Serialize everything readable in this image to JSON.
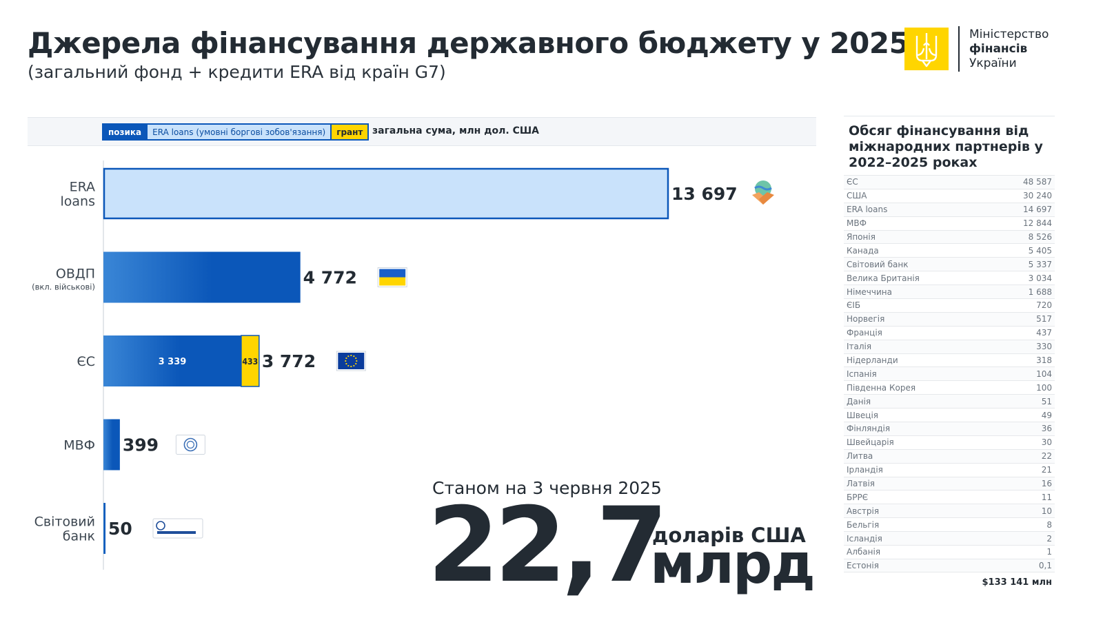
{
  "header": {
    "title": "Джерела фінансування державного бюджету у 2025",
    "subtitle": "(загальний фонд + кредити ERA від країн G7)"
  },
  "logo": {
    "line1": "Міністерство",
    "line2": "фінансів",
    "line3": "України"
  },
  "legend": {
    "loan": "позика",
    "era": "ERA loans (умовні боргові зобов'язання)",
    "grant": "грант",
    "total": "загальна сума, млн дол. США"
  },
  "colors": {
    "loan": "#0b57b9",
    "loan_light": "#3a86d6",
    "era_fill": "#c9e2fb",
    "grant": "#ffd500",
    "text": "#232b33"
  },
  "chart_data": {
    "type": "bar",
    "orientation": "horizontal",
    "stacked": true,
    "categories": [
      {
        "label": "ERA\nloans",
        "sublabel": "",
        "icon": "handshake-globe-icon"
      },
      {
        "label": "ОВДП",
        "sublabel": "(вкл. військові)",
        "icon": "ukraine-flag-icon"
      },
      {
        "label": "ЄС",
        "sublabel": "",
        "icon": "eu-flag-icon"
      },
      {
        "label": "МВФ",
        "sublabel": "",
        "icon": "imf-seal-icon"
      },
      {
        "label": "Світовий\nбанк",
        "sublabel": "",
        "icon": "world-bank-logo-icon"
      }
    ],
    "series": [
      {
        "name": "позика",
        "values": [
          0,
          4772,
          3339,
          399,
          50
        ]
      },
      {
        "name": "ERA loans (умовні боргові зобов'язання)",
        "values": [
          13697,
          0,
          0,
          0,
          0
        ]
      },
      {
        "name": "грант",
        "values": [
          0,
          0,
          433,
          0,
          0
        ]
      }
    ],
    "segment_labels": {
      "ЄС": [
        "3 339",
        "433"
      ]
    },
    "totals": [
      13697,
      4772,
      3772,
      399,
      50
    ],
    "total_labels": [
      "13 697",
      "4 772",
      "3 772",
      "399",
      "50"
    ],
    "xlim": [
      0,
      13697
    ],
    "legend_position": "top",
    "grid": false
  },
  "summary": {
    "date": "Станом на 3 червня 2025",
    "amount": "22,7",
    "currency": "доларів США",
    "unit": "млрд"
  },
  "partners": {
    "title": "Обсяг фінансування від міжнародних партнерів у 2022–2025 роках",
    "rows": [
      {
        "name": "ЄС",
        "value": "48 587"
      },
      {
        "name": "США",
        "value": "30 240"
      },
      {
        "name": "ERA loans",
        "value": "14 697"
      },
      {
        "name": "МВФ",
        "value": "12 844"
      },
      {
        "name": "Японія",
        "value": "8 526"
      },
      {
        "name": "Канада",
        "value": "5 405"
      },
      {
        "name": "Світовий банк",
        "value": "5 337"
      },
      {
        "name": "Велика Британія",
        "value": "3 034"
      },
      {
        "name": "Німеччина",
        "value": "1 688"
      },
      {
        "name": "ЄІБ",
        "value": "720"
      },
      {
        "name": "Норвегія",
        "value": "517"
      },
      {
        "name": "Франція",
        "value": "437"
      },
      {
        "name": "Італія",
        "value": "330"
      },
      {
        "name": "Нідерланди",
        "value": "318"
      },
      {
        "name": "Іспанія",
        "value": "104"
      },
      {
        "name": "Південна Корея",
        "value": "100"
      },
      {
        "name": "Данія",
        "value": "51"
      },
      {
        "name": "Швеція",
        "value": "49"
      },
      {
        "name": "Фінляндія",
        "value": "36"
      },
      {
        "name": "Швейцарія",
        "value": "30"
      },
      {
        "name": "Литва",
        "value": "22"
      },
      {
        "name": "Ірландія",
        "value": "21"
      },
      {
        "name": "Латвія",
        "value": "16"
      },
      {
        "name": "БРРЄ",
        "value": "11"
      },
      {
        "name": "Австрія",
        "value": "10"
      },
      {
        "name": "Бельгія",
        "value": "8"
      },
      {
        "name": "Ісландія",
        "value": "2"
      },
      {
        "name": "Албанія",
        "value": "1"
      },
      {
        "name": "Естонія",
        "value": "0,1"
      }
    ],
    "total": "$133 141 млн"
  }
}
